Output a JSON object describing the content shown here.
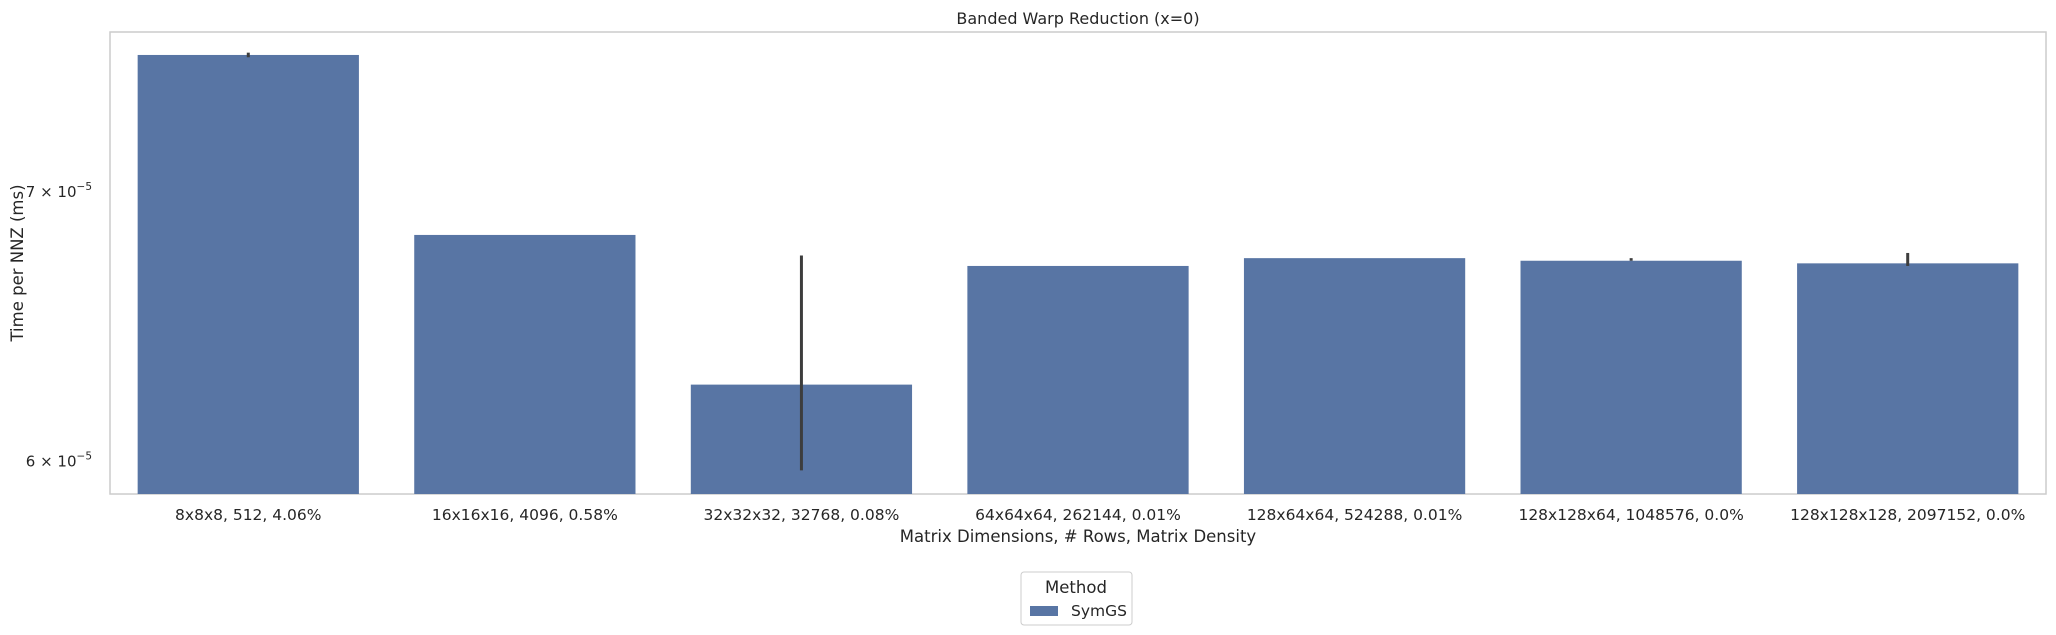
{
  "chart_data": {
    "type": "bar",
    "title": "Banded Warp Reduction (x=0)",
    "xlabel": "Matrix Dimensions, # Rows, Matrix Density",
    "ylabel": "Time per NNZ (ms)",
    "yscale": "log",
    "ylim": [
      5.89e-05,
      7.67e-05
    ],
    "yticks": [
      {
        "value": 6e-05,
        "base": "6 × 10",
        "exp": "−5"
      },
      {
        "value": 7e-05,
        "base": "7 × 10",
        "exp": "−5"
      }
    ],
    "categories": [
      "8x8x8, 512, 4.06%",
      "16x16x16, 4096, 0.58%",
      "32x32x32, 32768, 0.08%",
      "64x64x64, 262144, 0.01%",
      "128x64x64, 524288, 0.01%",
      "128x128x64, 1048576, 0.0%",
      "128x128x128, 2097152, 0.0%"
    ],
    "series": [
      {
        "name": "SymGS",
        "color": "#5875a4",
        "values": [
          7.57e-05,
          6.83e-05,
          6.27e-05,
          6.71e-05,
          6.74e-05,
          6.73e-05,
          6.72e-05
        ],
        "error_low": [
          7.56e-05,
          6.83e-05,
          5.97e-05,
          6.71e-05,
          6.74e-05,
          6.73e-05,
          6.71e-05
        ],
        "error_high": [
          7.58e-05,
          6.83e-05,
          6.75e-05,
          6.71e-05,
          6.74e-05,
          6.74e-05,
          6.76e-05
        ]
      }
    ],
    "grid": false,
    "legend": {
      "title": "Method",
      "placement": "bottom-center"
    }
  }
}
